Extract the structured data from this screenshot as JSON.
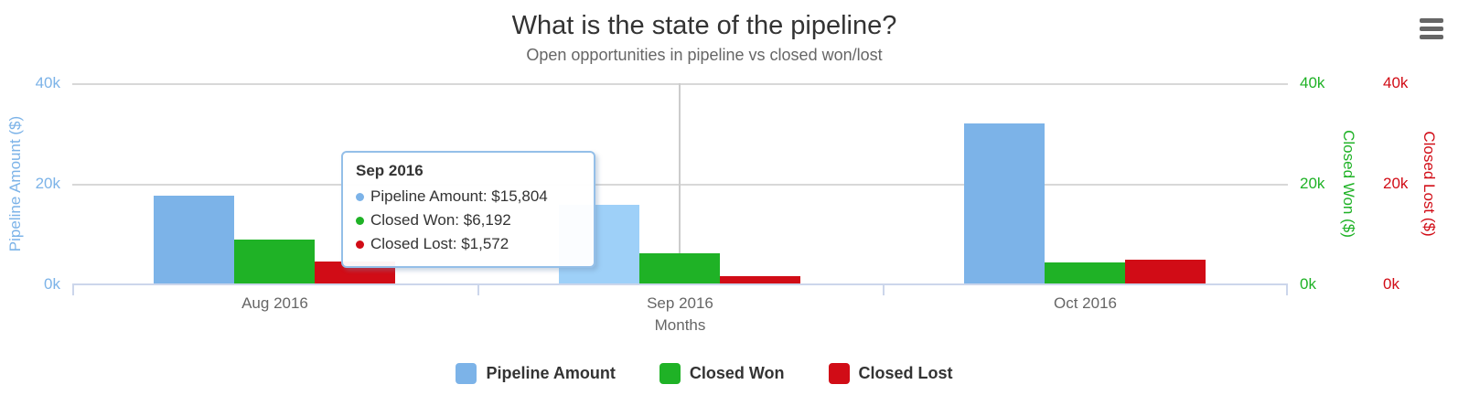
{
  "header": {
    "title": "What is the state of the pipeline?",
    "subtitle": "Open opportunities in pipeline vs closed won/lost"
  },
  "toolbar": {
    "menu_icon": "hamburger-icon"
  },
  "chart_data": {
    "type": "bar",
    "title": "What is the state of the pipeline?",
    "subtitle": "Open opportunities in pipeline vs closed won/lost",
    "categories": [
      "Aug 2016",
      "Sep 2016",
      "Oct 2016"
    ],
    "xlabel": "Months",
    "ylim": [
      0,
      40000
    ],
    "grid": "horizontal",
    "legend_position": "bottom",
    "series": [
      {
        "name": "Pipeline Amount",
        "color": "#7cb3e8",
        "values": [
          17650,
          15804,
          32000
        ]
      },
      {
        "name": "Closed Won",
        "color": "#1fb226",
        "values": [
          9000,
          6192,
          4400
        ]
      },
      {
        "name": "Closed Lost",
        "color": "#d10c16",
        "values": [
          4500,
          1572,
          4900
        ]
      }
    ],
    "y_axes": [
      {
        "title": "Pipeline Amount ($)",
        "color": "#7cb3e8",
        "side": "left",
        "ticks": [
          "40k",
          "20k",
          "0k"
        ]
      },
      {
        "title": "Closed Won ($)",
        "color": "#1fb226",
        "side": "right",
        "ticks": [
          "40k",
          "20k",
          "0k"
        ]
      },
      {
        "title": "Closed Lost ($)",
        "color": "#d10c16",
        "side": "right",
        "ticks": [
          "40k",
          "20k",
          "0k"
        ]
      }
    ],
    "highlight": {
      "category_index": 1,
      "series": "Pipeline Amount",
      "hover_color": "#9ed0f8"
    }
  },
  "tooltip": {
    "header": "Sep 2016",
    "rows": [
      {
        "text": "Pipeline Amount: $15,804",
        "color": "#7cb3e8"
      },
      {
        "text": "Closed Won: $6,192",
        "color": "#1fb226"
      },
      {
        "text": "Closed Lost: $1,572",
        "color": "#d10c16"
      }
    ]
  },
  "legend": {
    "items": [
      {
        "label": "Pipeline Amount",
        "color": "#7cb3e8"
      },
      {
        "label": "Closed Won",
        "color": "#1fb226"
      },
      {
        "label": "Closed Lost",
        "color": "#d10c16"
      }
    ]
  }
}
